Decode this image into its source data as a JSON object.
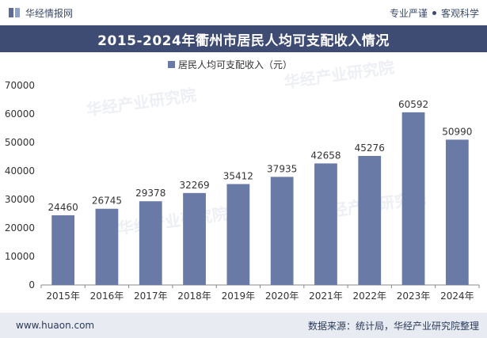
{
  "header": {
    "brand": "华经情报网",
    "tags": [
      "专业严谨",
      "客观科学"
    ]
  },
  "footer": {
    "website": "www.huaon.com",
    "source": "数据来源：统计局，华经产业研究院整理"
  },
  "watermark": "华经产业研究院",
  "colors": {
    "bar": "#6a7aa6",
    "title_bg": "#3e4b72",
    "footer_bg": "#e8ecf2"
  },
  "chart_data": {
    "type": "bar",
    "title": "2015-2024年衢州市居民人均可支配收入情况",
    "categories": [
      "2015年",
      "2016年",
      "2017年",
      "2018年",
      "2019年",
      "2020年",
      "2021年",
      "2022年",
      "2023年",
      "2024年"
    ],
    "series": [
      {
        "name": "居民人均可支配收入（元）",
        "values": [
          24460,
          26745,
          29378,
          32269,
          35412,
          37935,
          42658,
          45276,
          60592,
          50990
        ]
      }
    ],
    "ylim": [
      0,
      70000
    ],
    "yticks": [
      0,
      10000,
      20000,
      30000,
      40000,
      50000,
      60000,
      70000
    ],
    "grid": false,
    "legend": "top-center"
  }
}
